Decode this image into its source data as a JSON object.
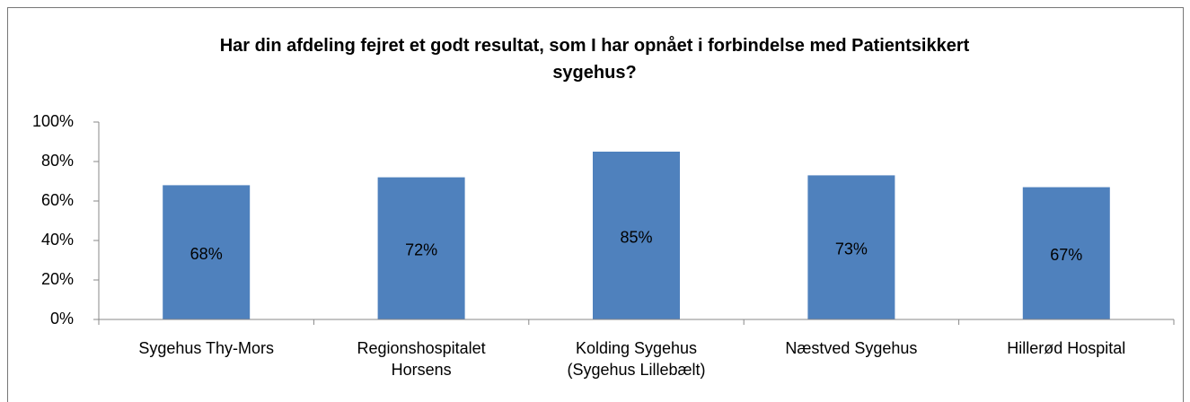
{
  "chart_data": {
    "type": "bar",
    "title": "Har din afdeling fejret et godt resultat, som I har opnået i forbindelse med Patientsikkert sygehus?",
    "categories": [
      "Sygehus Thy-Mors",
      "Regionshospitalet Horsens",
      "Kolding Sygehus (Sygehus Lillebælt)",
      "Næstved Sygehus",
      "Hillerød Hospital"
    ],
    "values": [
      68,
      72,
      85,
      73,
      67
    ],
    "value_labels": [
      "68%",
      "72%",
      "85%",
      "73%",
      "67%"
    ],
    "color": "#4f81bd",
    "ylim": [
      0,
      100
    ],
    "yticks": [
      {
        "value": 0,
        "label": "0%"
      },
      {
        "value": 20,
        "label": "20%"
      },
      {
        "value": 40,
        "label": "40%"
      },
      {
        "value": 60,
        "label": "60%"
      },
      {
        "value": 80,
        "label": "80%"
      },
      {
        "value": 100,
        "label": "100%"
      }
    ],
    "grid": false
  }
}
